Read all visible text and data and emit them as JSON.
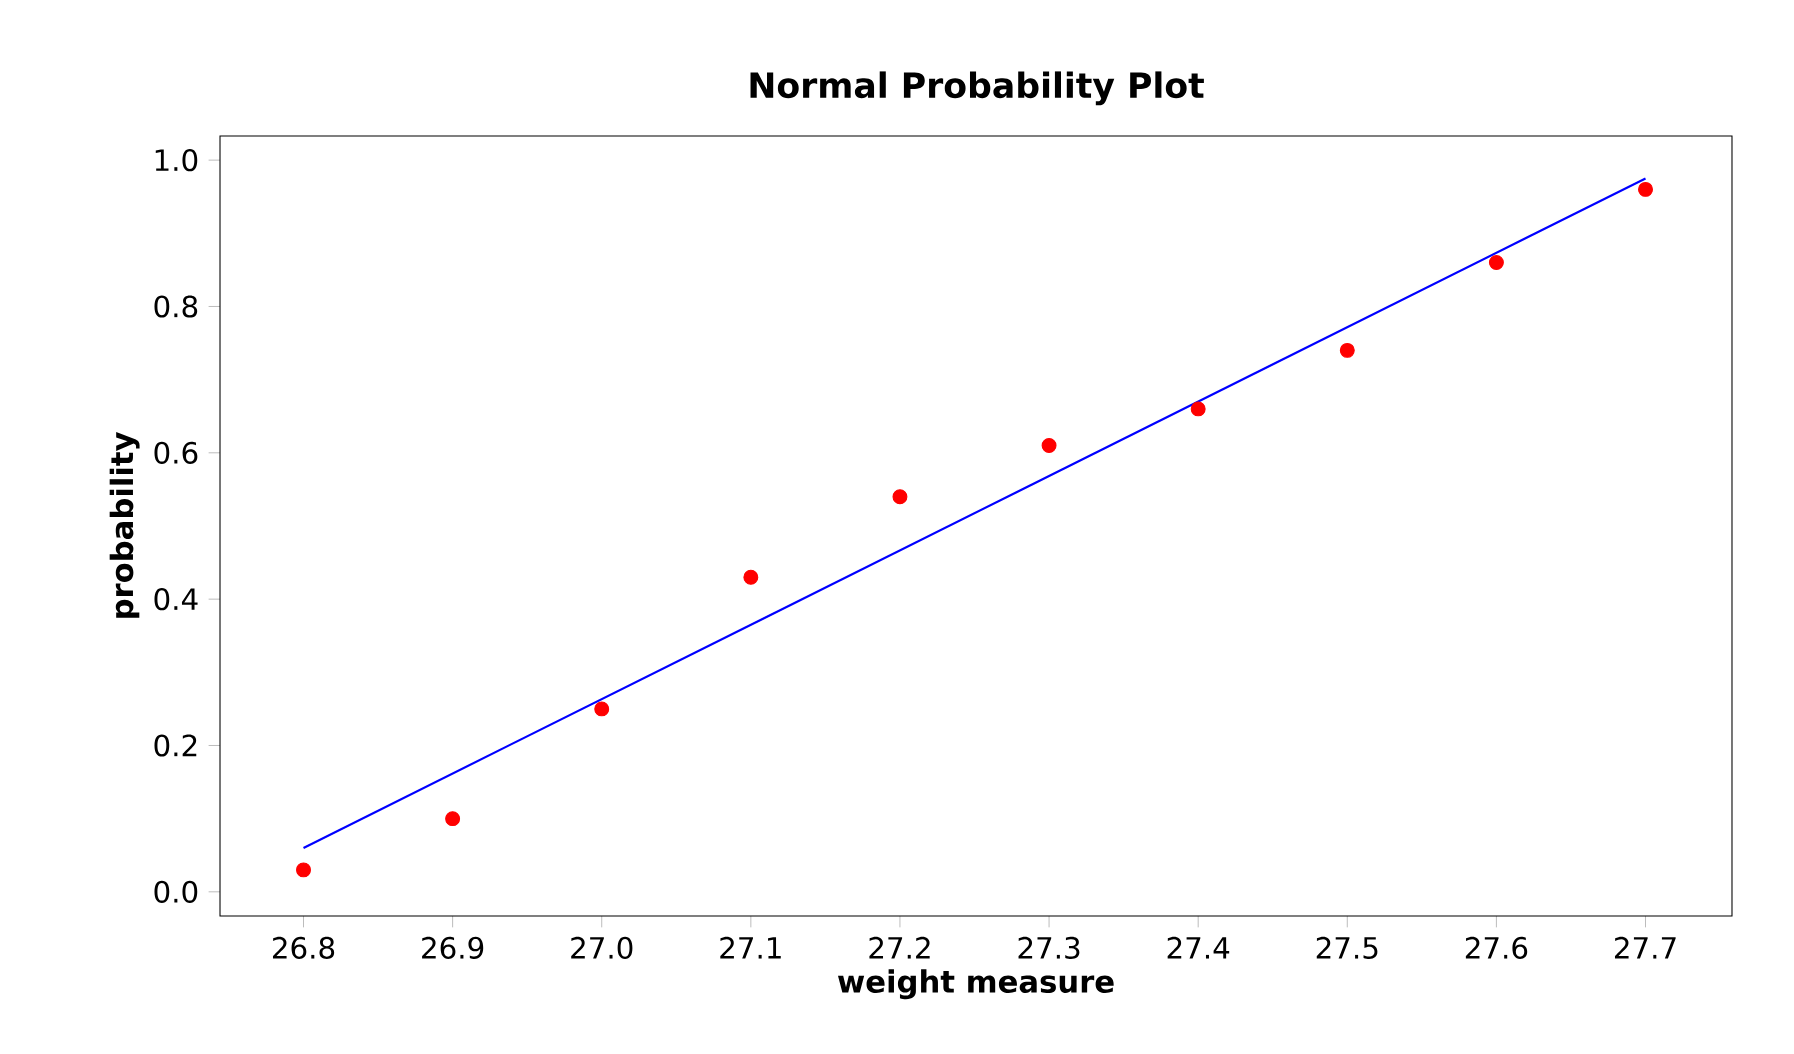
{
  "chart_data": {
    "type": "scatter",
    "title": "Normal Probability Plot",
    "xlabel": "weight measure",
    "ylabel": "probability",
    "series": [
      {
        "color": "#ff0000",
        "marker": "circle",
        "x": [
          26.8,
          26.9,
          27.0,
          27.1,
          27.2,
          27.3,
          27.4,
          27.5,
          27.6,
          27.7
        ],
        "values": [
          0.03,
          0.1,
          0.25,
          0.43,
          0.54,
          0.61,
          0.66,
          0.74,
          0.86,
          0.96
        ]
      },
      {
        "type": "line",
        "color": "#0000ff",
        "marker": "none",
        "x": [
          26.8,
          27.7
        ],
        "values": [
          0.06,
          0.975
        ]
      }
    ],
    "xlim": [
      26.744,
      27.758
    ],
    "ylim": [
      -0.033,
      1.033
    ],
    "xticks": [
      26.8,
      26.9,
      {
        "value": 27.0,
        "label": "27.0"
      },
      27.1,
      27.2,
      27.3,
      27.4,
      27.5,
      27.6,
      27.7
    ],
    "yticks": [
      {
        "value": 0,
        "label": "0.0"
      },
      0.2,
      0.4,
      0.6,
      0.8,
      {
        "value": 1,
        "label": "1.0"
      }
    ],
    "grid": false
  }
}
